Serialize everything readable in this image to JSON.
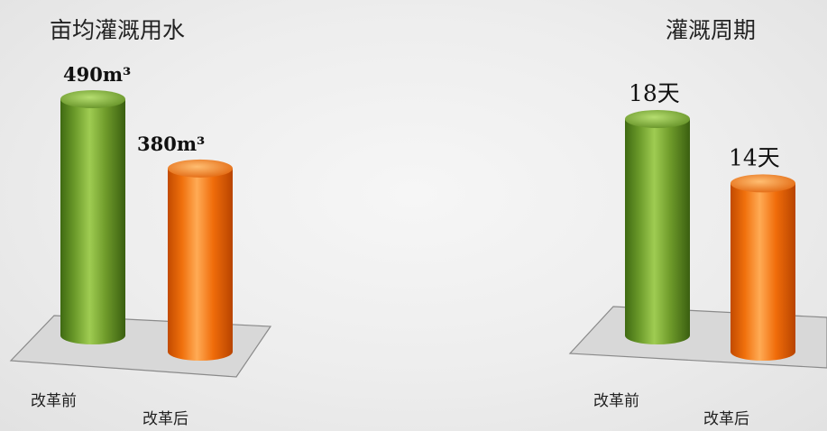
{
  "colors": {
    "green": "#6e9a2a",
    "orange": "#f0700c"
  },
  "chart_data": [
    {
      "type": "bar",
      "title": "亩均灌溉用水",
      "categories": [
        "改革前",
        "改革后"
      ],
      "values": [
        490,
        380
      ],
      "value_labels": [
        "490m³",
        "380m³"
      ],
      "xlabel": "",
      "ylabel": "",
      "ylim": [
        0,
        490
      ]
    },
    {
      "type": "bar",
      "title": "灌溉周期",
      "categories": [
        "改革前",
        "改革后"
      ],
      "values": [
        18,
        14
      ],
      "value_labels": [
        "18天",
        "14天"
      ],
      "xlabel": "",
      "ylabel": "",
      "ylim": [
        0,
        18
      ]
    }
  ]
}
